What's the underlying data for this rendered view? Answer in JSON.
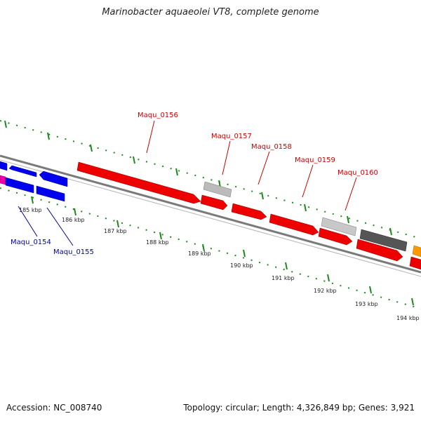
{
  "title": "Marinobacter aquaeolei VT8, complete genome",
  "footer": {
    "accession": "Accession: NC_008740",
    "summary": "Topology: circular; Length: 4,326,849 bp; Genes: 3,921"
  },
  "colors": {
    "background": "#ffffff",
    "backbone": "#8a8a8a",
    "tick": "#1e8a1e",
    "gene_red": "#ee0000",
    "gene_blue": "#0000ee",
    "gene_gray_light": "#bbbbbb",
    "gene_gray_dark": "#555555",
    "gene_magenta": "#ee00aa",
    "gene_orange": "#ff9900",
    "label_red": "#cc0000",
    "label_blue": "#0000aa"
  },
  "scale": {
    "ticks": [
      {
        "label": "185 kbp"
      },
      {
        "label": "186 kbp"
      },
      {
        "label": "187 kbp"
      },
      {
        "label": "188 kbp"
      },
      {
        "label": "189 kbp"
      },
      {
        "label": "190 kbp"
      },
      {
        "label": "191 kbp"
      },
      {
        "label": "192 kbp"
      },
      {
        "label": "193 kbp"
      },
      {
        "label": "194 kbp"
      }
    ]
  },
  "gene_labels": [
    {
      "name": "Maqu_0154",
      "color": "blue"
    },
    {
      "name": "Maqu_0155",
      "color": "blue"
    },
    {
      "name": "Maqu_0156",
      "color": "red"
    },
    {
      "name": "Maqu_0157",
      "color": "red"
    },
    {
      "name": "Maqu_0158",
      "color": "red"
    },
    {
      "name": "Maqu_0159",
      "color": "red"
    },
    {
      "name": "Maqu_0160",
      "color": "red"
    }
  ]
}
